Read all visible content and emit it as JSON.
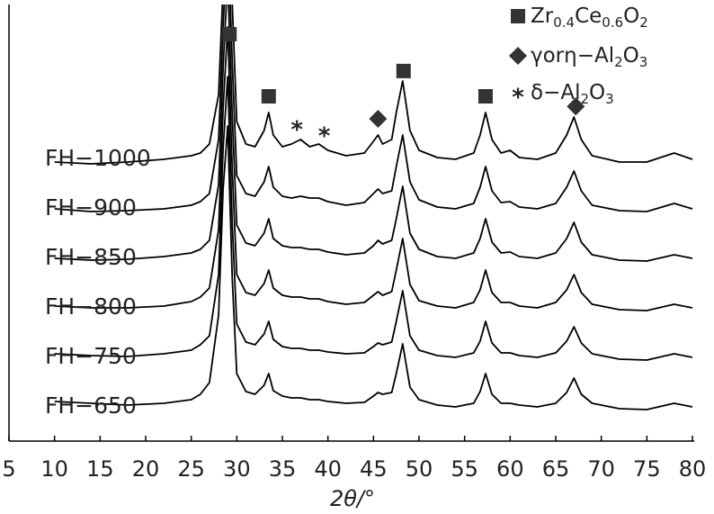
{
  "chart_data": {
    "type": "xrd-stack",
    "xlabel": "2θ/°",
    "xlim": [
      5,
      80
    ],
    "xticks": [
      5,
      10,
      15,
      20,
      25,
      30,
      35,
      40,
      45,
      50,
      55,
      60,
      65,
      70,
      75,
      80
    ],
    "x": [
      10,
      14,
      18,
      22,
      25,
      26,
      27,
      28,
      28.5,
      29,
      29.5,
      30,
      31,
      32,
      33,
      33.5,
      34,
      35,
      36,
      37,
      38,
      39,
      40,
      42,
      44,
      45,
      45.5,
      46,
      47,
      47.5,
      48.2,
      49,
      50,
      52,
      54,
      56,
      56.7,
      57.3,
      58,
      59,
      60,
      61,
      63,
      65,
      66.2,
      67,
      67.8,
      69,
      72,
      75,
      78,
      80
    ],
    "series": [
      {
        "name": "FH−1000",
        "color": "#000000",
        "values": [
          5,
          3,
          5,
          8,
          12,
          15,
          25,
          80,
          200,
          320,
          180,
          50,
          25,
          22,
          40,
          60,
          35,
          22,
          25,
          30,
          22,
          25,
          18,
          12,
          15,
          28,
          35,
          25,
          30,
          60,
          95,
          40,
          18,
          10,
          8,
          15,
          35,
          60,
          30,
          15,
          18,
          10,
          8,
          15,
          35,
          55,
          30,
          12,
          5,
          5,
          15,
          8
        ]
      },
      {
        "name": "FH−900",
        "color": "#000000",
        "values": [
          8,
          5,
          6,
          8,
          12,
          16,
          25,
          85,
          210,
          320,
          170,
          45,
          25,
          22,
          38,
          55,
          32,
          22,
          20,
          22,
          20,
          20,
          16,
          12,
          15,
          25,
          30,
          25,
          28,
          55,
          90,
          38,
          18,
          10,
          8,
          14,
          32,
          55,
          28,
          15,
          16,
          10,
          8,
          14,
          32,
          50,
          28,
          12,
          6,
          5,
          14,
          8
        ]
      },
      {
        "name": "FH−850",
        "color": "#000000",
        "values": [
          8,
          6,
          7,
          10,
          14,
          18,
          28,
          90,
          220,
          320,
          165,
          45,
          25,
          22,
          36,
          52,
          30,
          22,
          20,
          20,
          18,
          18,
          15,
          12,
          14,
          22,
          28,
          24,
          28,
          52,
          88,
          36,
          18,
          10,
          8,
          14,
          30,
          52,
          26,
          14,
          15,
          10,
          8,
          14,
          30,
          48,
          26,
          12,
          6,
          5,
          12,
          8
        ]
      },
      {
        "name": "FH−800",
        "color": "#000000",
        "values": [
          10,
          8,
          8,
          10,
          15,
          20,
          30,
          95,
          230,
          320,
          160,
          45,
          25,
          22,
          35,
          50,
          30,
          22,
          20,
          20,
          18,
          18,
          15,
          12,
          14,
          22,
          26,
          22,
          26,
          50,
          85,
          34,
          16,
          10,
          8,
          14,
          28,
          50,
          25,
          14,
          14,
          10,
          8,
          14,
          28,
          45,
          25,
          12,
          6,
          5,
          12,
          8
        ]
      },
      {
        "name": "FH−750",
        "color": "#000000",
        "values": [
          12,
          10,
          9,
          12,
          16,
          22,
          32,
          100,
          240,
          320,
          155,
          45,
          25,
          22,
          34,
          48,
          28,
          20,
          18,
          18,
          16,
          16,
          14,
          12,
          13,
          20,
          24,
          22,
          25,
          48,
          82,
          32,
          16,
          10,
          8,
          13,
          26,
          48,
          24,
          13,
          13,
          10,
          8,
          13,
          26,
          42,
          24,
          12,
          6,
          5,
          12,
          8
        ]
      },
      {
        "name": "FH−650",
        "color": "#000000",
        "values": [
          14,
          12,
          10,
          12,
          16,
          22,
          35,
          110,
          250,
          320,
          150,
          45,
          25,
          22,
          32,
          45,
          26,
          20,
          18,
          18,
          16,
          16,
          14,
          12,
          13,
          20,
          24,
          22,
          24,
          45,
          78,
          30,
          16,
          10,
          8,
          12,
          25,
          45,
          22,
          12,
          12,
          10,
          8,
          12,
          24,
          40,
          22,
          12,
          6,
          5,
          12,
          8
        ]
      }
    ],
    "legend": [
      {
        "marker": "square",
        "label": "Zr0.4Ce0.6O2"
      },
      {
        "marker": "diamond",
        "label": "γorη−Al2O3"
      },
      {
        "marker": "star",
        "label": "δ−Al2O3"
      }
    ],
    "annotations": [
      {
        "marker": "square",
        "x": 29.2
      },
      {
        "marker": "square",
        "x": 33.5
      },
      {
        "marker": "star",
        "x": 36.6
      },
      {
        "marker": "star",
        "x": 39.6
      },
      {
        "marker": "diamond",
        "x": 45.5
      },
      {
        "marker": "square",
        "x": 48.3
      },
      {
        "marker": "square",
        "x": 57.3
      },
      {
        "marker": "diamond",
        "x": 67.2
      }
    ]
  }
}
